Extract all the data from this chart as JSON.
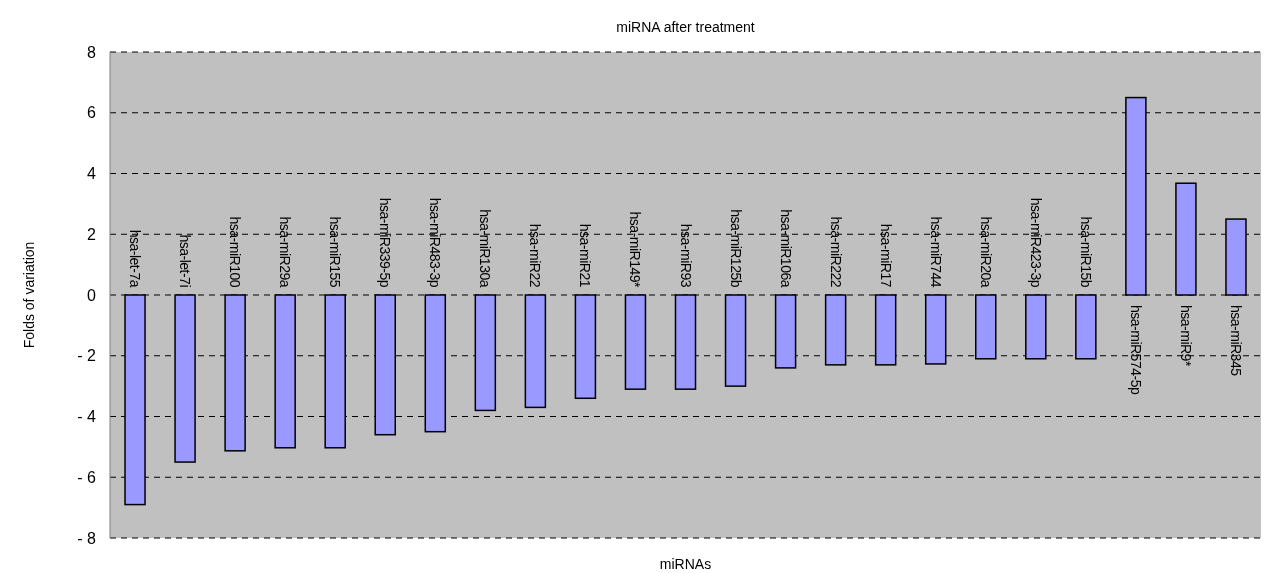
{
  "chart_data": {
    "type": "bar",
    "title": "miRNA after treatment",
    "xlabel": "miRNAs",
    "ylabel": "Folds of variation",
    "categories": [
      "hsa-let-7a",
      "hsa-let-7i",
      "hsa-miR100",
      "hsa-miR29a",
      "hsa-miR155",
      "hsa-miR339-5p",
      "hsa-miR483-3p",
      "hsa-miR130a",
      "hsa-miR22",
      "hsa-miR21",
      "hsa-miR149*",
      "hsa-miR93",
      "hsa-miR125b",
      "hsa-miR106a",
      "hsa-miR222",
      "hsa-miR17",
      "hsa-miR744",
      "hsa-miR20a",
      "hsa-miR423-3p",
      "hsa-miR15b",
      "hsa-miR574-5p",
      "hsa-miR9*",
      "hsa-miR345"
    ],
    "values": [
      -6.9,
      -5.5,
      -5.13,
      -5.03,
      -5.03,
      -4.6,
      -4.5,
      -3.8,
      -3.7,
      -3.4,
      -3.1,
      -3.1,
      -3.0,
      -2.4,
      -2.3,
      -2.3,
      -2.27,
      -2.1,
      -2.1,
      -2.1,
      6.5,
      3.68,
      2.5
    ],
    "color": "#9999ff",
    "ylim": [
      -8,
      8
    ],
    "yticks": [
      -8,
      -6,
      -4,
      -2,
      0,
      2,
      4,
      6,
      8
    ],
    "grid": "y"
  }
}
